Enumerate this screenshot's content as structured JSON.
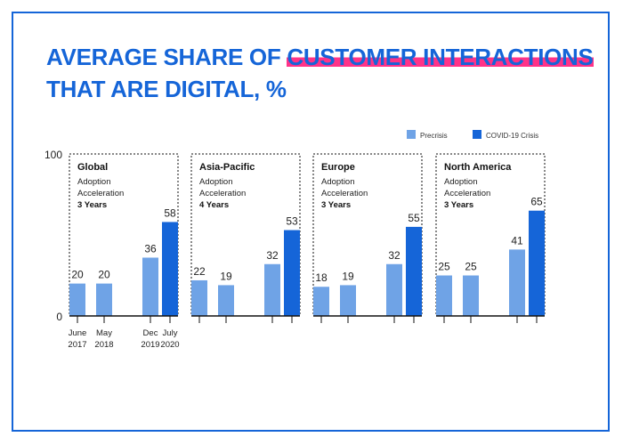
{
  "title": {
    "part1": "AVERAGE SHARE OF ",
    "highlight": "CUSTOMER INTERACTIONS",
    "line2": "THAT ARE DIGITAL, %"
  },
  "colors": {
    "precrisis": "#6fa3e6",
    "covid": "#1565d8",
    "highlight": "#ff3388",
    "title": "#1565d8"
  },
  "chart_data": {
    "type": "bar",
    "ylim": [
      0,
      100
    ],
    "yticks": [
      "0",
      "100"
    ],
    "categories": [
      "June 2017",
      "May 2018",
      "Dec 2019",
      "July 2020"
    ],
    "category_labels": [
      [
        "June",
        "2017"
      ],
      [
        "May",
        "2018"
      ],
      [
        "Dec",
        "2019"
      ],
      [
        "July",
        "2020"
      ]
    ],
    "legend": {
      "position": "top-right",
      "items": [
        {
          "label": "Precrisis",
          "color": "#6fa3e6"
        },
        {
          "label": "COVID-19 Crisis",
          "color": "#1565d8"
        }
      ]
    },
    "panels": [
      {
        "region": "Global",
        "line1": "Adoption",
        "line2": "Acceleration",
        "years": "3 Years",
        "values": [
          20,
          20,
          36,
          58
        ]
      },
      {
        "region": "Asia-Pacific",
        "line1": "Adoption",
        "line2": "Acceleration",
        "years": "4 Years",
        "values": [
          22,
          19,
          32,
          53
        ]
      },
      {
        "region": "Europe",
        "line1": "Adoption",
        "line2": "Acceleration",
        "years": "3 Years",
        "values": [
          18,
          19,
          32,
          55
        ]
      },
      {
        "region": "North America",
        "line1": "Adoption",
        "line2": "Acceleration",
        "years": "3 Years",
        "values": [
          25,
          25,
          41,
          65
        ]
      }
    ],
    "series_of_bar": [
      "precrisis",
      "precrisis",
      "precrisis",
      "covid"
    ]
  }
}
